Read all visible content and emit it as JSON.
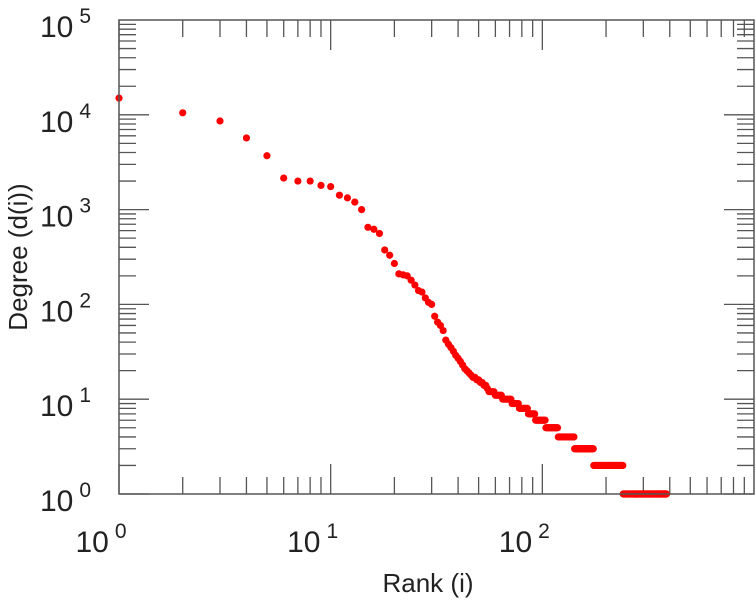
{
  "chart_data": {
    "type": "scatter",
    "title": "",
    "xlabel": "Rank (i)",
    "ylabel": "Degree (d(i))",
    "xscale": "log",
    "yscale": "log",
    "xlim": [
      1,
      1000
    ],
    "ylim": [
      1,
      100000
    ],
    "grid": false,
    "marker_color": "#ff0000",
    "x_ticks": [
      {
        "value": 1,
        "base": "10",
        "exp": "0"
      },
      {
        "value": 10,
        "base": "10",
        "exp": "1"
      },
      {
        "value": 100,
        "base": "10",
        "exp": "2"
      }
    ],
    "y_ticks": [
      {
        "value": 1,
        "base": "10",
        "exp": "0"
      },
      {
        "value": 10,
        "base": "10",
        "exp": "1"
      },
      {
        "value": 100,
        "base": "10",
        "exp": "2"
      },
      {
        "value": 1000,
        "base": "10",
        "exp": "3"
      },
      {
        "value": 10000,
        "base": "10",
        "exp": "4"
      },
      {
        "value": 100000,
        "base": "10",
        "exp": "5"
      }
    ],
    "degrees_by_rank_1_to_55": [
      15000,
      10500,
      8600,
      5700,
      3700,
      2150,
      2000,
      2000,
      1800,
      1750,
      1420,
      1330,
      1200,
      1000,
      650,
      620,
      560,
      375,
      330,
      270,
      210,
      205,
      200,
      180,
      160,
      140,
      135,
      117,
      105,
      100,
      75,
      65,
      60,
      53,
      42,
      38,
      35,
      32,
      29,
      27,
      25,
      23,
      21,
      20,
      19,
      18,
      17,
      17,
      16,
      16,
      15,
      15,
      14,
      14,
      13
    ],
    "plateaus": [
      {
        "degree": 12,
        "rank_from": 56,
        "rank_to": 59
      },
      {
        "degree": 11,
        "rank_from": 60,
        "rank_to": 64
      },
      {
        "degree": 10,
        "rank_from": 65,
        "rank_to": 71
      },
      {
        "degree": 9,
        "rank_from": 72,
        "rank_to": 77
      },
      {
        "degree": 8,
        "rank_from": 78,
        "rank_to": 85
      },
      {
        "degree": 7,
        "rank_from": 86,
        "rank_to": 92
      },
      {
        "degree": 6,
        "rank_from": 93,
        "rank_to": 103
      },
      {
        "degree": 5,
        "rank_from": 104,
        "rank_to": 118
      },
      {
        "degree": 4,
        "rank_from": 119,
        "rank_to": 141
      },
      {
        "degree": 3,
        "rank_from": 142,
        "rank_to": 174
      },
      {
        "degree": 2,
        "rank_from": 175,
        "rank_to": 240
      },
      {
        "degree": 1,
        "rank_from": 241,
        "rank_to": 386
      }
    ]
  }
}
